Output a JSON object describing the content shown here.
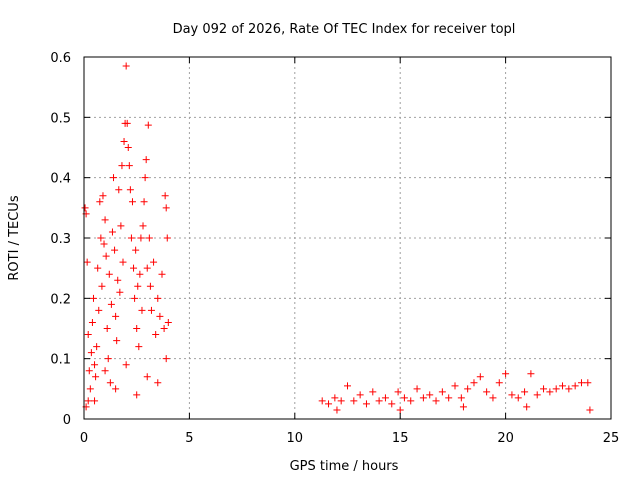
{
  "chart_data": {
    "type": "scatter",
    "title": "Day 092 of 2026, Rate Of TEC Index for receiver topl",
    "xlabel": "GPS time / hours",
    "ylabel": "ROTI / TECUs",
    "xlim": [
      0,
      25
    ],
    "ylim": [
      0,
      0.6
    ],
    "x_ticks": [
      0,
      5,
      10,
      15,
      20,
      25
    ],
    "y_ticks": [
      0,
      0.1,
      0.2,
      0.3,
      0.4,
      0.5,
      0.6
    ],
    "x_tick_labels": [
      "0",
      "5",
      "10",
      "15",
      "20",
      "25"
    ],
    "y_tick_labels": [
      "0",
      "0.1",
      "0.2",
      "0.3",
      "0.4",
      "0.5",
      "0.6"
    ],
    "grid": true,
    "legend": "none",
    "marker": "plus",
    "color": "#ff0000",
    "series": [
      {
        "points": [
          [
            0.05,
            0.35
          ],
          [
            0.1,
            0.34
          ],
          [
            0.15,
            0.26
          ],
          [
            0.2,
            0.14
          ],
          [
            0.25,
            0.08
          ],
          [
            0.3,
            0.05
          ],
          [
            0.1,
            0.02
          ],
          [
            0.2,
            0.03
          ],
          [
            0.35,
            0.11
          ],
          [
            0.4,
            0.16
          ],
          [
            0.45,
            0.2
          ],
          [
            0.5,
            0.09
          ],
          [
            0.55,
            0.07
          ],
          [
            0.6,
            0.12
          ],
          [
            0.65,
            0.25
          ],
          [
            0.7,
            0.18
          ],
          [
            0.75,
            0.36
          ],
          [
            0.8,
            0.3
          ],
          [
            0.85,
            0.22
          ],
          [
            0.9,
            0.37
          ],
          [
            0.95,
            0.29
          ],
          [
            1.0,
            0.33
          ],
          [
            1.05,
            0.27
          ],
          [
            1.1,
            0.15
          ],
          [
            1.15,
            0.1
          ],
          [
            1.2,
            0.24
          ],
          [
            1.25,
            0.06
          ],
          [
            1.3,
            0.19
          ],
          [
            1.35,
            0.31
          ],
          [
            1.4,
            0.4
          ],
          [
            1.45,
            0.28
          ],
          [
            1.5,
            0.17
          ],
          [
            1.55,
            0.13
          ],
          [
            1.6,
            0.23
          ],
          [
            1.65,
            0.38
          ],
          [
            1.7,
            0.21
          ],
          [
            1.75,
            0.32
          ],
          [
            1.8,
            0.42
          ],
          [
            1.85,
            0.26
          ],
          [
            1.9,
            0.46
          ],
          [
            1.95,
            0.49
          ],
          [
            2.0,
            0.585
          ],
          [
            2.05,
            0.49
          ],
          [
            2.1,
            0.45
          ],
          [
            2.15,
            0.42
          ],
          [
            2.2,
            0.38
          ],
          [
            2.25,
            0.3
          ],
          [
            2.3,
            0.36
          ],
          [
            2.35,
            0.25
          ],
          [
            2.4,
            0.2
          ],
          [
            2.45,
            0.28
          ],
          [
            2.5,
            0.15
          ],
          [
            2.55,
            0.22
          ],
          [
            2.6,
            0.12
          ],
          [
            2.65,
            0.24
          ],
          [
            2.7,
            0.3
          ],
          [
            2.75,
            0.18
          ],
          [
            2.8,
            0.32
          ],
          [
            2.85,
            0.36
          ],
          [
            2.9,
            0.4
          ],
          [
            2.95,
            0.43
          ],
          [
            3.0,
            0.25
          ],
          [
            3.05,
            0.487
          ],
          [
            3.1,
            0.3
          ],
          [
            3.15,
            0.22
          ],
          [
            3.2,
            0.18
          ],
          [
            3.3,
            0.26
          ],
          [
            3.4,
            0.14
          ],
          [
            3.5,
            0.2
          ],
          [
            3.6,
            0.17
          ],
          [
            3.7,
            0.24
          ],
          [
            3.8,
            0.15
          ],
          [
            3.85,
            0.37
          ],
          [
            3.9,
            0.35
          ],
          [
            3.95,
            0.3
          ],
          [
            4.0,
            0.16
          ],
          [
            1.0,
            0.08
          ],
          [
            1.5,
            0.05
          ],
          [
            2.0,
            0.09
          ],
          [
            2.5,
            0.04
          ],
          [
            3.0,
            0.07
          ],
          [
            3.5,
            0.06
          ],
          [
            0.5,
            0.03
          ],
          [
            3.9,
            0.1
          ],
          [
            11.3,
            0.03
          ],
          [
            11.6,
            0.025
          ],
          [
            11.9,
            0.035
          ],
          [
            12.2,
            0.03
          ],
          [
            12.5,
            0.055
          ],
          [
            12.8,
            0.03
          ],
          [
            13.1,
            0.04
          ],
          [
            13.4,
            0.025
          ],
          [
            13.7,
            0.045
          ],
          [
            14.0,
            0.03
          ],
          [
            14.3,
            0.035
          ],
          [
            14.6,
            0.025
          ],
          [
            14.9,
            0.045
          ],
          [
            15.2,
            0.035
          ],
          [
            15.5,
            0.03
          ],
          [
            15.8,
            0.05
          ],
          [
            16.1,
            0.035
          ],
          [
            16.4,
            0.04
          ],
          [
            16.7,
            0.03
          ],
          [
            17.0,
            0.045
          ],
          [
            17.3,
            0.035
          ],
          [
            17.6,
            0.055
          ],
          [
            17.9,
            0.035
          ],
          [
            18.2,
            0.05
          ],
          [
            18.5,
            0.06
          ],
          [
            18.8,
            0.07
          ],
          [
            19.1,
            0.045
          ],
          [
            19.4,
            0.035
          ],
          [
            19.7,
            0.06
          ],
          [
            20.0,
            0.075
          ],
          [
            20.3,
            0.04
          ],
          [
            20.6,
            0.035
          ],
          [
            20.9,
            0.045
          ],
          [
            21.2,
            0.075
          ],
          [
            21.5,
            0.04
          ],
          [
            21.8,
            0.05
          ],
          [
            22.1,
            0.045
          ],
          [
            22.4,
            0.05
          ],
          [
            22.7,
            0.055
          ],
          [
            23.0,
            0.05
          ],
          [
            23.3,
            0.055
          ],
          [
            23.6,
            0.06
          ],
          [
            23.9,
            0.06
          ],
          [
            24.0,
            0.015
          ],
          [
            12.0,
            0.015
          ],
          [
            15.0,
            0.015
          ],
          [
            18.0,
            0.02
          ],
          [
            21.0,
            0.02
          ]
        ]
      }
    ]
  }
}
